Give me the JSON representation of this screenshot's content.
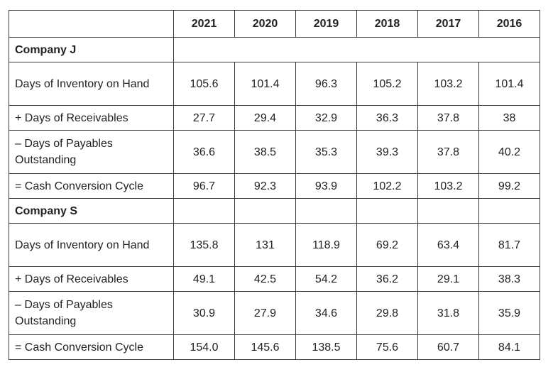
{
  "years": [
    "2021",
    "2020",
    "2019",
    "2018",
    "2017",
    "2016"
  ],
  "companies": [
    {
      "name": "Company J",
      "rows": [
        {
          "label": "Days of Inventory on Hand",
          "values": [
            "105.6",
            "101.4",
            "96.3",
            "105.2",
            "103.2",
            "101.4"
          ]
        },
        {
          "label": "+ Days of Receivables",
          "values": [
            "27.7",
            "29.4",
            "32.9",
            "36.3",
            "37.8",
            "38"
          ]
        },
        {
          "label": "– Days of Payables Outstanding",
          "values": [
            "36.6",
            "38.5",
            "35.3",
            "39.3",
            "37.8",
            "40.2"
          ]
        },
        {
          "label": "= Cash Conversion Cycle",
          "values": [
            "96.7",
            "92.3",
            "93.9",
            "102.2",
            "103.2",
            "99.2"
          ]
        }
      ]
    },
    {
      "name": "Company S",
      "rows": [
        {
          "label": "Days of Inventory on Hand",
          "values": [
            "135.8",
            "131",
            "118.9",
            "69.2",
            "63.4",
            "81.7"
          ]
        },
        {
          "label": "+ Days of Receivables",
          "values": [
            "49.1",
            "42.5",
            "54.2",
            "36.2",
            "29.1",
            "38.3"
          ]
        },
        {
          "label": "– Days of Payables Outstanding",
          "values": [
            "30.9",
            "27.9",
            "34.6",
            "29.8",
            "31.8",
            "35.9"
          ]
        },
        {
          "label": "= Cash Conversion Cycle",
          "values": [
            "154.0",
            "145.6",
            "138.5",
            "75.6",
            "60.7",
            "84.1"
          ]
        }
      ]
    }
  ]
}
